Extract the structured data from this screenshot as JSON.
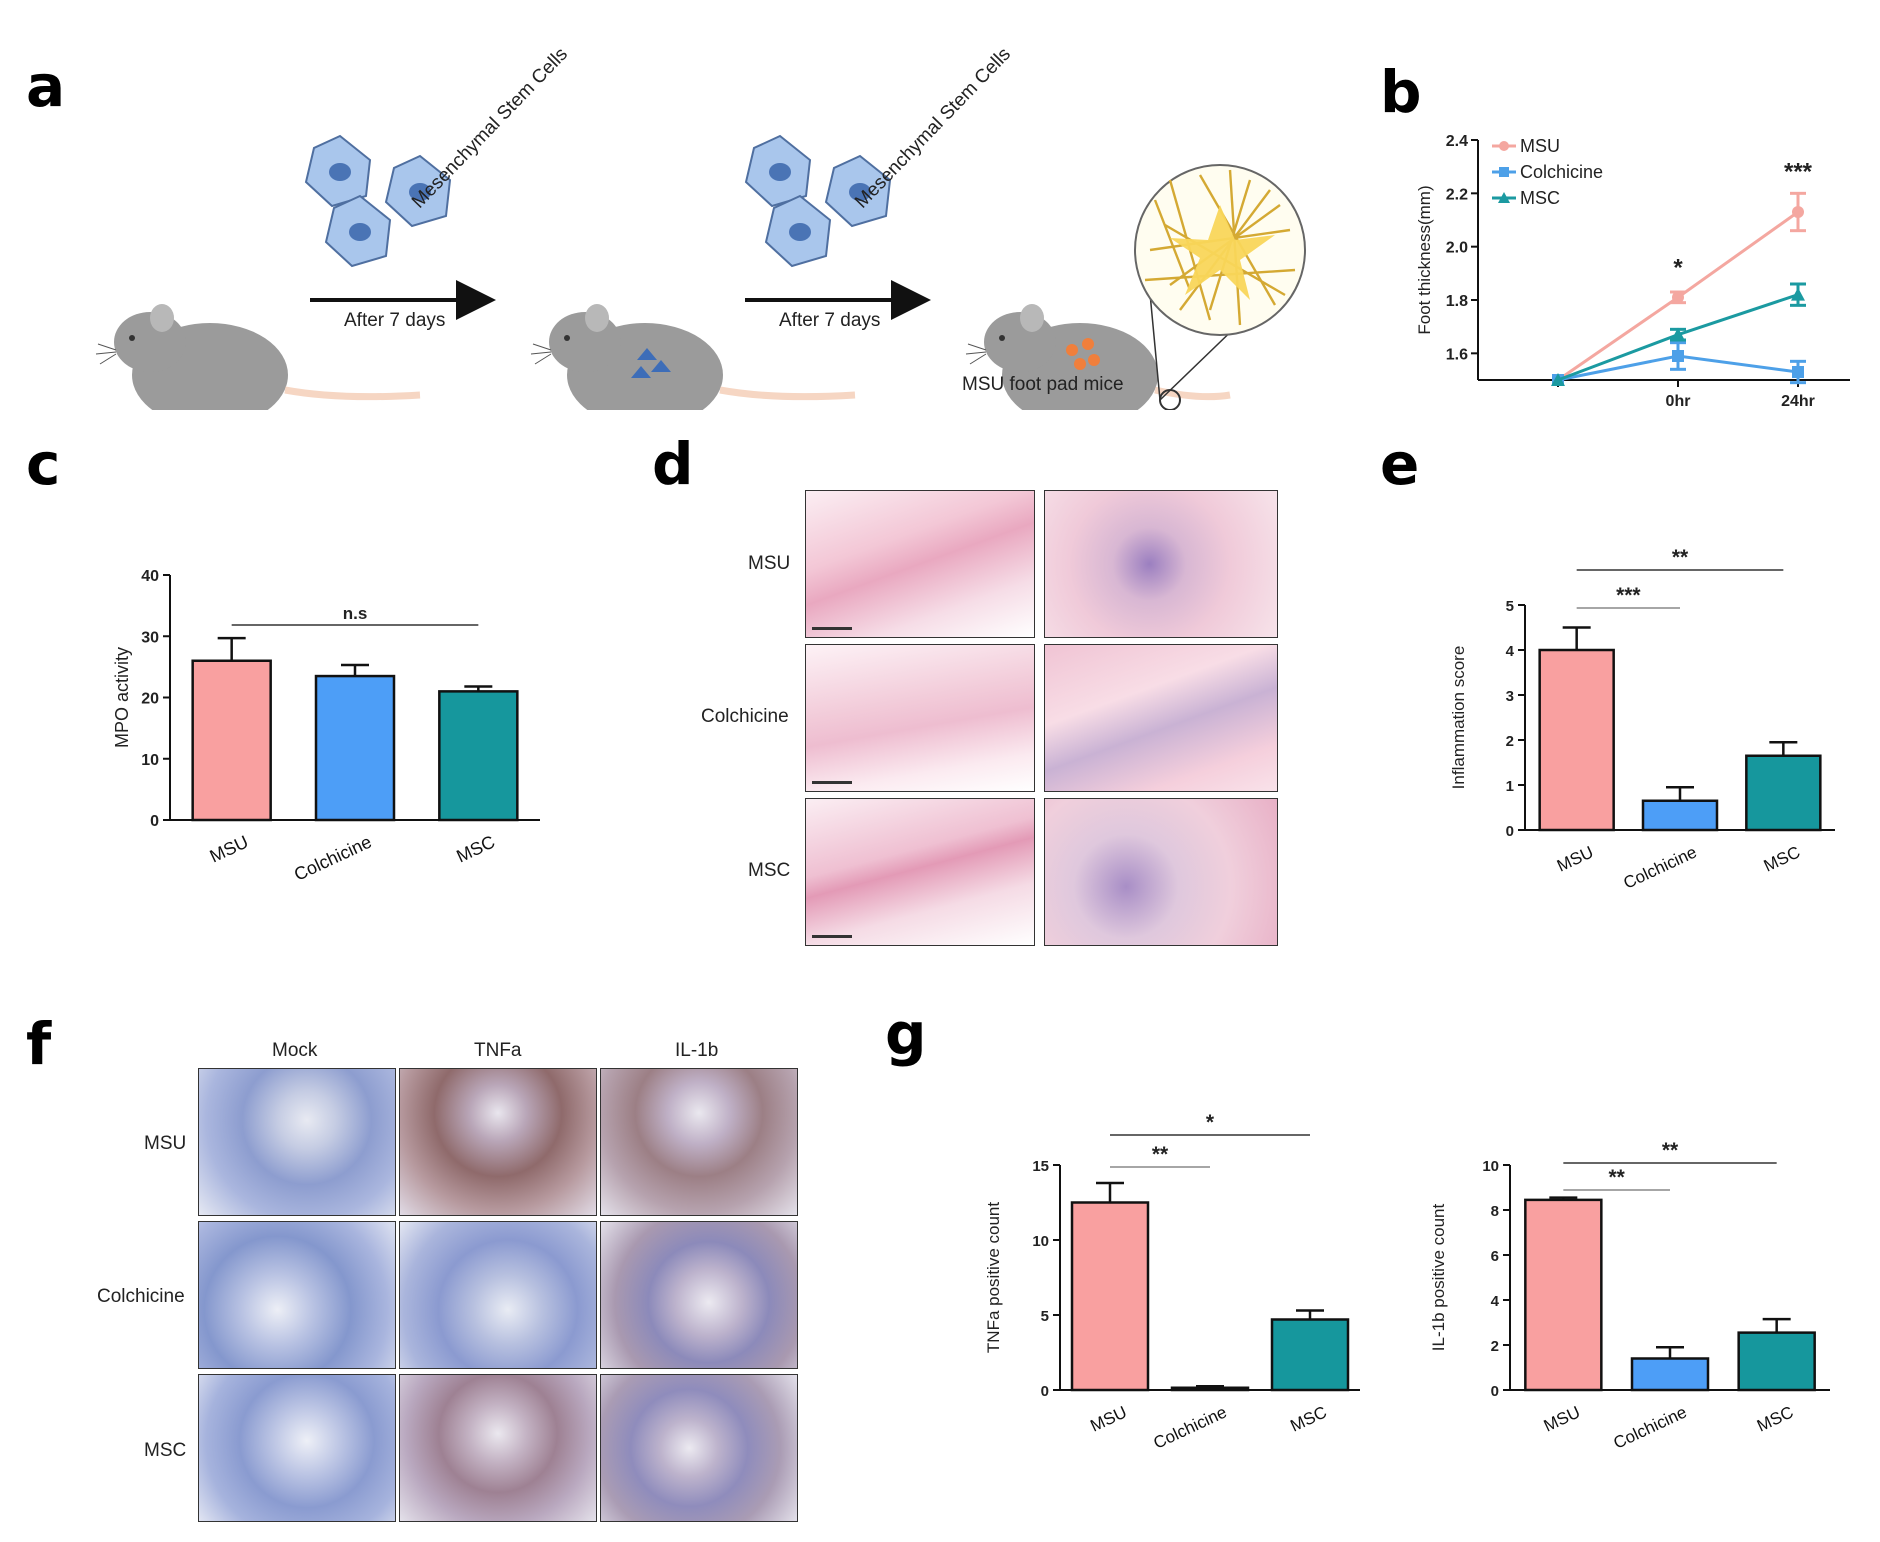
{
  "panels": {
    "a": "a",
    "b": "b",
    "c": "c",
    "d": "d",
    "e": "e",
    "f": "f",
    "g": "g"
  },
  "panel_a": {
    "stem_cell_label": "Mesenchymal Stem Cells",
    "arrow_label": "After 7 days",
    "final_label": "MSU foot pad mice"
  },
  "panel_d": {
    "rows": [
      "MSU",
      "Colchicine",
      "MSC"
    ]
  },
  "panel_f": {
    "columns": [
      "Mock",
      "TNFa",
      "IL-1b"
    ],
    "rows": [
      "MSU",
      "Colchicine",
      "MSC"
    ]
  },
  "colors": {
    "msu": "#f9a0a0",
    "colchicine": "#4d9ef7",
    "msc": "#16979d",
    "msu_line": "#f4a7a0",
    "colchicine_line": "#4da0e8",
    "msc_line": "#1b9aa1"
  },
  "chart_data": [
    {
      "id": "b",
      "type": "line",
      "ylabel": "Foot thickness(mm)",
      "categories": [
        "",
        "0hr",
        "24hr"
      ],
      "yticks": [
        1.6,
        1.8,
        2.0,
        2.2,
        2.4
      ],
      "ylim": [
        1.5,
        2.4
      ],
      "legend_position": "top-left",
      "series": [
        {
          "name": "MSU",
          "values": [
            1.5,
            1.81,
            2.13
          ],
          "errors": [
            0,
            0.02,
            0.07
          ],
          "marker": "circle"
        },
        {
          "name": "Colchicine",
          "values": [
            1.5,
            1.59,
            1.53
          ],
          "errors": [
            0,
            0.05,
            0.04
          ],
          "marker": "square"
        },
        {
          "name": "MSC",
          "values": [
            1.5,
            1.67,
            1.82
          ],
          "errors": [
            0,
            0.02,
            0.04
          ],
          "marker": "triangle"
        }
      ],
      "annotations": [
        {
          "x": "0hr",
          "text": "*"
        },
        {
          "x": "24hr",
          "text": "***"
        }
      ]
    },
    {
      "id": "c",
      "type": "bar",
      "ylabel": "MPO activity",
      "categories": [
        "MSU",
        "Colchicine",
        "MSC"
      ],
      "values": [
        26,
        23.5,
        21
      ],
      "errors": [
        3.7,
        1.8,
        0.8
      ],
      "yticks": [
        0,
        10,
        20,
        30,
        40
      ],
      "ylim": [
        0,
        40
      ],
      "annotations": [
        {
          "from": "MSU",
          "to": "MSC",
          "text": "n.s"
        }
      ]
    },
    {
      "id": "e",
      "type": "bar",
      "ylabel": "Inflammation  score",
      "categories": [
        "MSU",
        "Colchicine",
        "MSC"
      ],
      "values": [
        4.0,
        0.65,
        1.65
      ],
      "errors": [
        0.5,
        0.3,
        0.3
      ],
      "yticks": [
        0,
        1,
        2,
        3,
        4,
        5
      ],
      "ylim": [
        0,
        5
      ],
      "annotations": [
        {
          "from": "MSU",
          "to": "Colchicine",
          "text": "***"
        },
        {
          "from": "MSU",
          "to": "MSC",
          "text": "**"
        }
      ]
    },
    {
      "id": "g1",
      "type": "bar",
      "ylabel": "TNFa positive count",
      "categories": [
        "MSU",
        "Colchicine",
        "MSC"
      ],
      "values": [
        12.5,
        0.15,
        4.7
      ],
      "errors": [
        1.3,
        0.1,
        0.6
      ],
      "yticks": [
        0,
        5,
        10,
        15
      ],
      "ylim": [
        0,
        15
      ],
      "annotations": [
        {
          "from": "MSU",
          "to": "Colchicine",
          "text": "**"
        },
        {
          "from": "MSU",
          "to": "MSC",
          "text": "*"
        }
      ]
    },
    {
      "id": "g2",
      "type": "bar",
      "ylabel": "IL-1b positive count",
      "categories": [
        "MSU",
        "Colchicine",
        "MSC"
      ],
      "values": [
        8.45,
        1.4,
        2.55
      ],
      "errors": [
        0.1,
        0.5,
        0.6
      ],
      "yticks": [
        0,
        2,
        4,
        6,
        8,
        10
      ],
      "ylim": [
        0,
        10
      ],
      "annotations": [
        {
          "from": "MSU",
          "to": "Colchicine",
          "text": "**"
        },
        {
          "from": "MSU",
          "to": "MSC",
          "text": "**"
        }
      ]
    }
  ]
}
